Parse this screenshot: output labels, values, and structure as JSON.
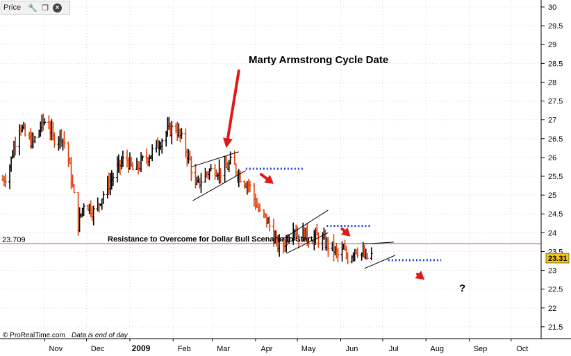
{
  "toolbar": {
    "label": "Price",
    "icons": [
      "wrench-icon",
      "restore-window-icon",
      "close-icon"
    ]
  },
  "annotations": {
    "title": "Marty Armstrong Cycle Date",
    "resistance_text": "Resistance to Overcome for Dollar Bull Scenario to Start",
    "resistance_value_label": "23.709",
    "last_price_label": "23.31",
    "question_mark": "?"
  },
  "credit": {
    "brand": "© ProRealTime.com",
    "note": "Data is end of day"
  },
  "colors": {
    "up_bar": "#000000",
    "down_bar": "#e0400a",
    "resistance_line": "#d04040",
    "dotted_projection": "#1a3fe0",
    "arrow": "#e01818",
    "price_tag": "#f5c518"
  },
  "chart_data": {
    "type": "ohlc",
    "title": "",
    "xlabel": "",
    "ylabel": "",
    "ylim": [
      21.0,
      30.0
    ],
    "y_ticks": [
      "21.5",
      "22",
      "22.5",
      "23",
      "23.5",
      "24",
      "24.5",
      "25",
      "25.5",
      "26",
      "26.5",
      "27",
      "27.5",
      "28",
      "28.5",
      "29",
      "29.5",
      "30"
    ],
    "x_ticks": [
      {
        "label": "Nov",
        "day": 46
      },
      {
        "label": "Dec",
        "day": 76
      },
      {
        "label": "2009",
        "day": 107,
        "bold": true
      },
      {
        "label": "Feb",
        "day": 138
      },
      {
        "label": "Mar",
        "day": 166
      },
      {
        "label": "Apr",
        "day": 197
      },
      {
        "label": "May",
        "day": 227
      },
      {
        "label": "Jun",
        "day": 258
      },
      {
        "label": "Jul",
        "day": 288
      },
      {
        "label": "Aug",
        "day": 319
      },
      {
        "label": "Sep",
        "day": 350
      },
      {
        "label": "Oct",
        "day": 380
      }
    ],
    "x_range_days": [
      15,
      400
    ],
    "resistance_level": 23.709,
    "last_price": 23.31,
    "price_path": [
      [
        16,
        25.4
      ],
      [
        20,
        25.6
      ],
      [
        24,
        26.3
      ],
      [
        28,
        26.9
      ],
      [
        33,
        26.5
      ],
      [
        38,
        26.4
      ],
      [
        44,
        26.9
      ],
      [
        48,
        27.0
      ],
      [
        52,
        26.5
      ],
      [
        58,
        26.6
      ],
      [
        62,
        26.2
      ],
      [
        66,
        25.2
      ],
      [
        70,
        24.2
      ],
      [
        74,
        24.8
      ],
      [
        78,
        24.7
      ],
      [
        82,
        24.5
      ],
      [
        86,
        24.9
      ],
      [
        92,
        25.3
      ],
      [
        98,
        25.7
      ],
      [
        104,
        26.0
      ],
      [
        110,
        25.6
      ],
      [
        116,
        25.9
      ],
      [
        122,
        26.1
      ],
      [
        128,
        26.4
      ],
      [
        134,
        26.7
      ],
      [
        140,
        26.8
      ],
      [
        146,
        26.3
      ],
      [
        150,
        25.9
      ],
      [
        154,
        25.2
      ],
      [
        158,
        25.4
      ],
      [
        162,
        25.6
      ],
      [
        168,
        25.7
      ],
      [
        174,
        25.6
      ],
      [
        180,
        25.9
      ],
      [
        184,
        25.6
      ],
      [
        188,
        25.4
      ],
      [
        192,
        25.3
      ],
      [
        196,
        24.9
      ],
      [
        200,
        24.5
      ],
      [
        204,
        24.4
      ],
      [
        208,
        24.1
      ],
      [
        212,
        23.7
      ],
      [
        216,
        23.6
      ],
      [
        220,
        23.9
      ],
      [
        224,
        24.2
      ],
      [
        228,
        23.9
      ],
      [
        232,
        24.0
      ],
      [
        236,
        23.8
      ],
      [
        240,
        23.9
      ],
      [
        244,
        23.8
      ],
      [
        248,
        23.7
      ],
      [
        252,
        23.6
      ],
      [
        256,
        23.4
      ],
      [
        260,
        23.5
      ],
      [
        264,
        23.3
      ],
      [
        268,
        23.6
      ],
      [
        272,
        23.5
      ],
      [
        276,
        23.3
      ],
      [
        280,
        23.4
      ]
    ],
    "trendlines": [
      {
        "x1": 151,
        "y1": 25.75,
        "x2": 185,
        "y2": 26.15
      },
      {
        "x1": 152,
        "y1": 24.85,
        "x2": 190,
        "y2": 25.65
      },
      {
        "x1": 213,
        "y1": 23.75,
        "x2": 249,
        "y2": 24.6
      },
      {
        "x1": 219,
        "y1": 23.45,
        "x2": 249,
        "y2": 24.0
      },
      {
        "x1": 274,
        "y1": 23.7,
        "x2": 296,
        "y2": 23.75
      },
      {
        "x1": 275,
        "y1": 23.05,
        "x2": 297,
        "y2": 23.4
      }
    ],
    "dotted_levels": [
      {
        "x1": 190,
        "x2": 232,
        "y": 25.7
      },
      {
        "x1": 248,
        "x2": 279,
        "y": 24.18
      },
      {
        "x1": 292,
        "x2": 330,
        "y": 23.27
      }
    ],
    "arrows": [
      {
        "x1": 185,
        "y1": 28.3,
        "x2": 176,
        "y2": 26.25,
        "big": true
      },
      {
        "x1": 201,
        "y1": 25.55,
        "x2": 210,
        "y2": 25.3
      },
      {
        "x1": 259,
        "y1": 24.1,
        "x2": 265,
        "y2": 23.9
      },
      {
        "x1": 313,
        "y1": 22.9,
        "x2": 318,
        "y2": 22.75
      }
    ]
  }
}
